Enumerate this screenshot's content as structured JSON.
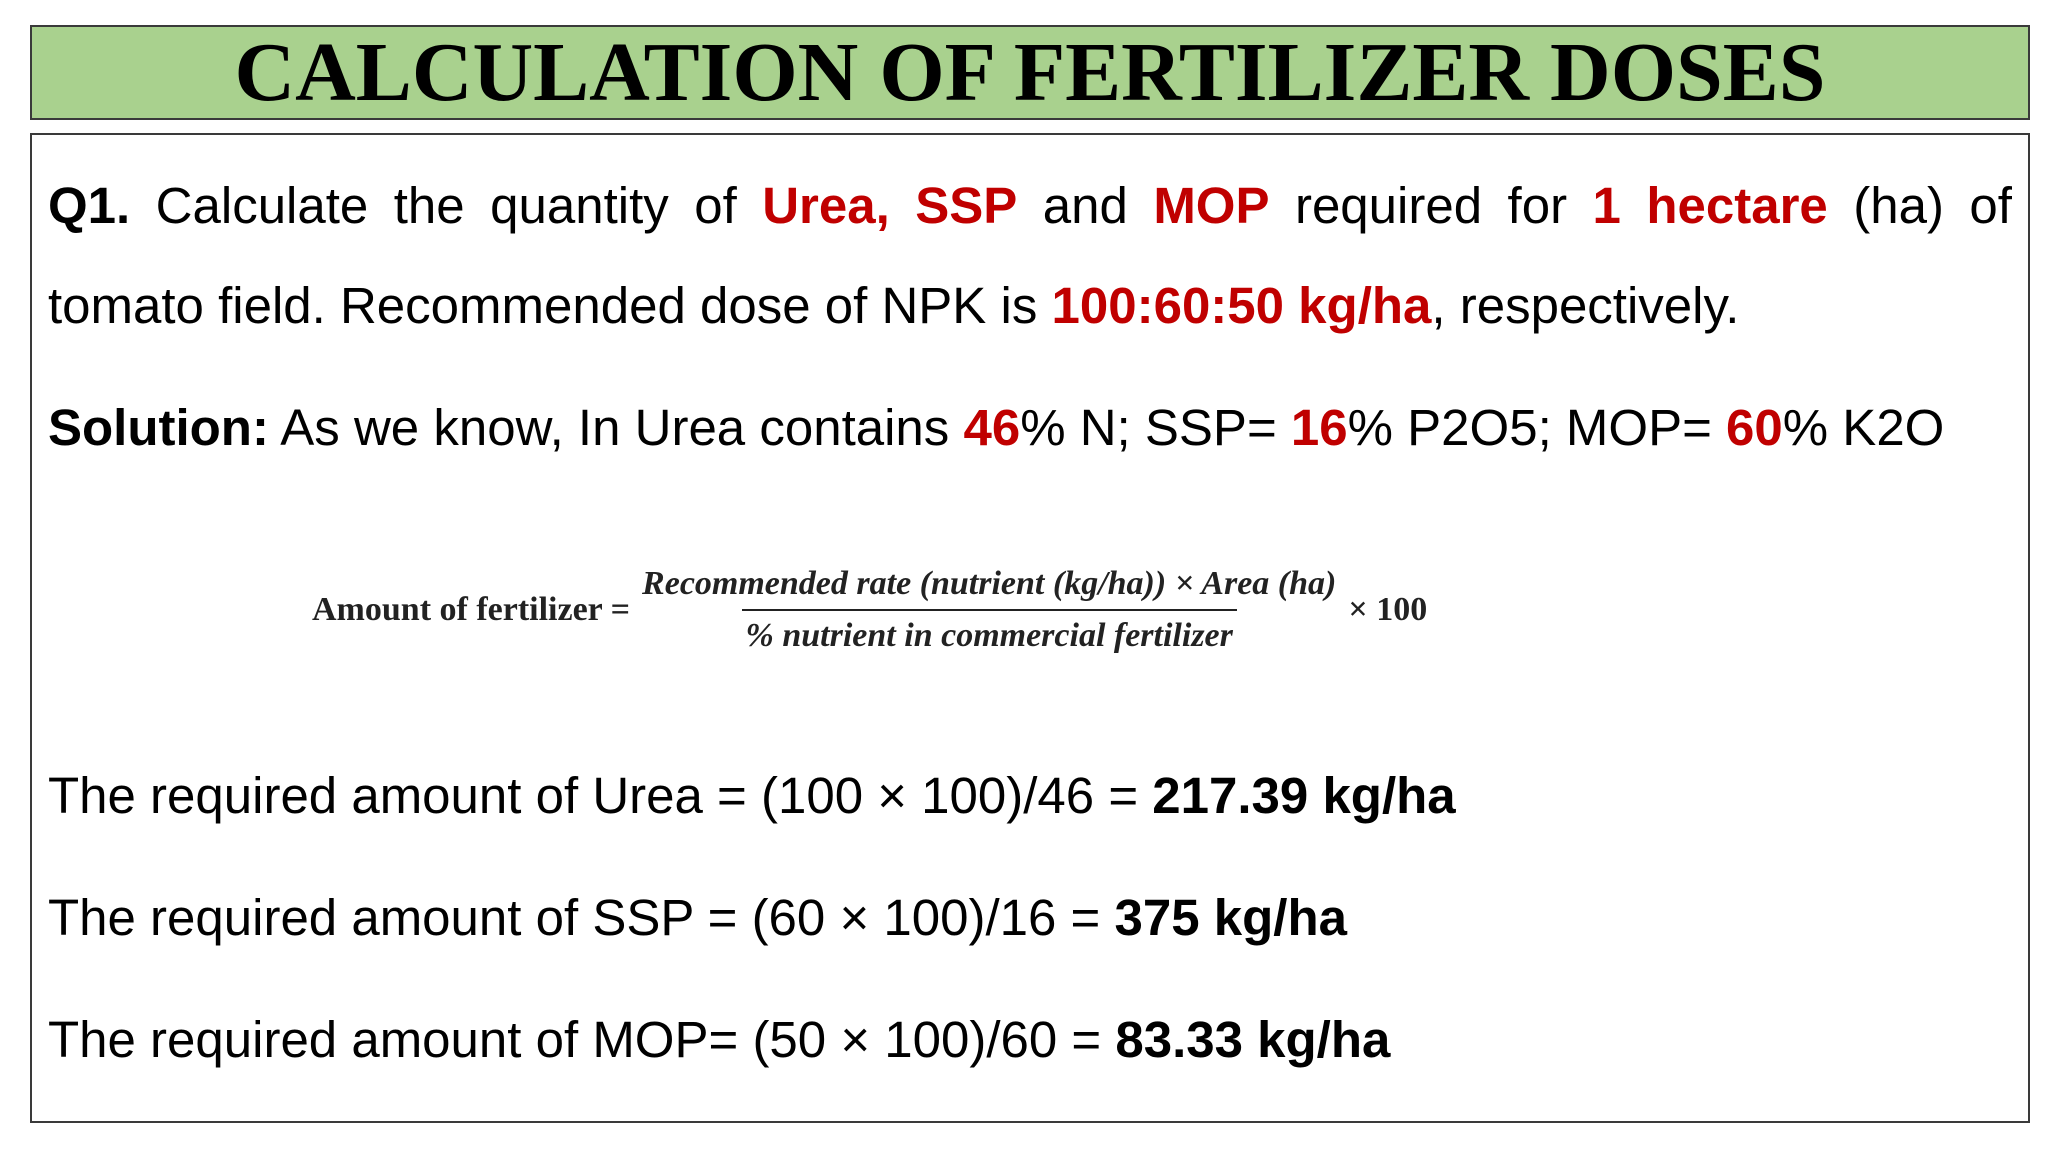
{
  "title": "CALCULATION OF FERTILIZER DOSES",
  "question": {
    "label": "Q1.",
    "t1": " Calculate the quantity of ",
    "h1": "Urea, SSP",
    "t2": " and ",
    "h2": "MOP",
    "t3": " required for ",
    "h3": "1 hectare",
    "t4": " (ha) of",
    "t5": "tomato field. Recommended dose of NPK is ",
    "h4": "100:60:50 kg/ha",
    "t6": ", respectively."
  },
  "solution": {
    "label": "Solution:",
    "t1": " As we know, In Urea contains ",
    "n_pct": "46",
    "t2": "% N; SSP= ",
    "p_pct": "16",
    "t3": "% P2O5; MOP= ",
    "k_pct": "60",
    "t4": "% K2O"
  },
  "formula": {
    "lhs": "Amount of fertilizer =",
    "numerator": "Recommended rate (nutrient (kg/ha)) × Area (ha)",
    "denominator": "% nutrient in commercial fertilizer",
    "tail": "× 100"
  },
  "results": [
    {
      "text": "The required amount of Urea = (100 × 100)/46 = ",
      "value": "217.39 kg/ha"
    },
    {
      "text": "The required amount of SSP = (60 × 100)/16 = ",
      "value": "375 kg/ha"
    },
    {
      "text": "The required amount of MOP= (50 × 100)/60 = ",
      "value": "83.33 kg/ha"
    }
  ],
  "colors": {
    "title_bg": "#a9d18e",
    "highlight": "#c00000",
    "border": "#3a3a3a"
  }
}
